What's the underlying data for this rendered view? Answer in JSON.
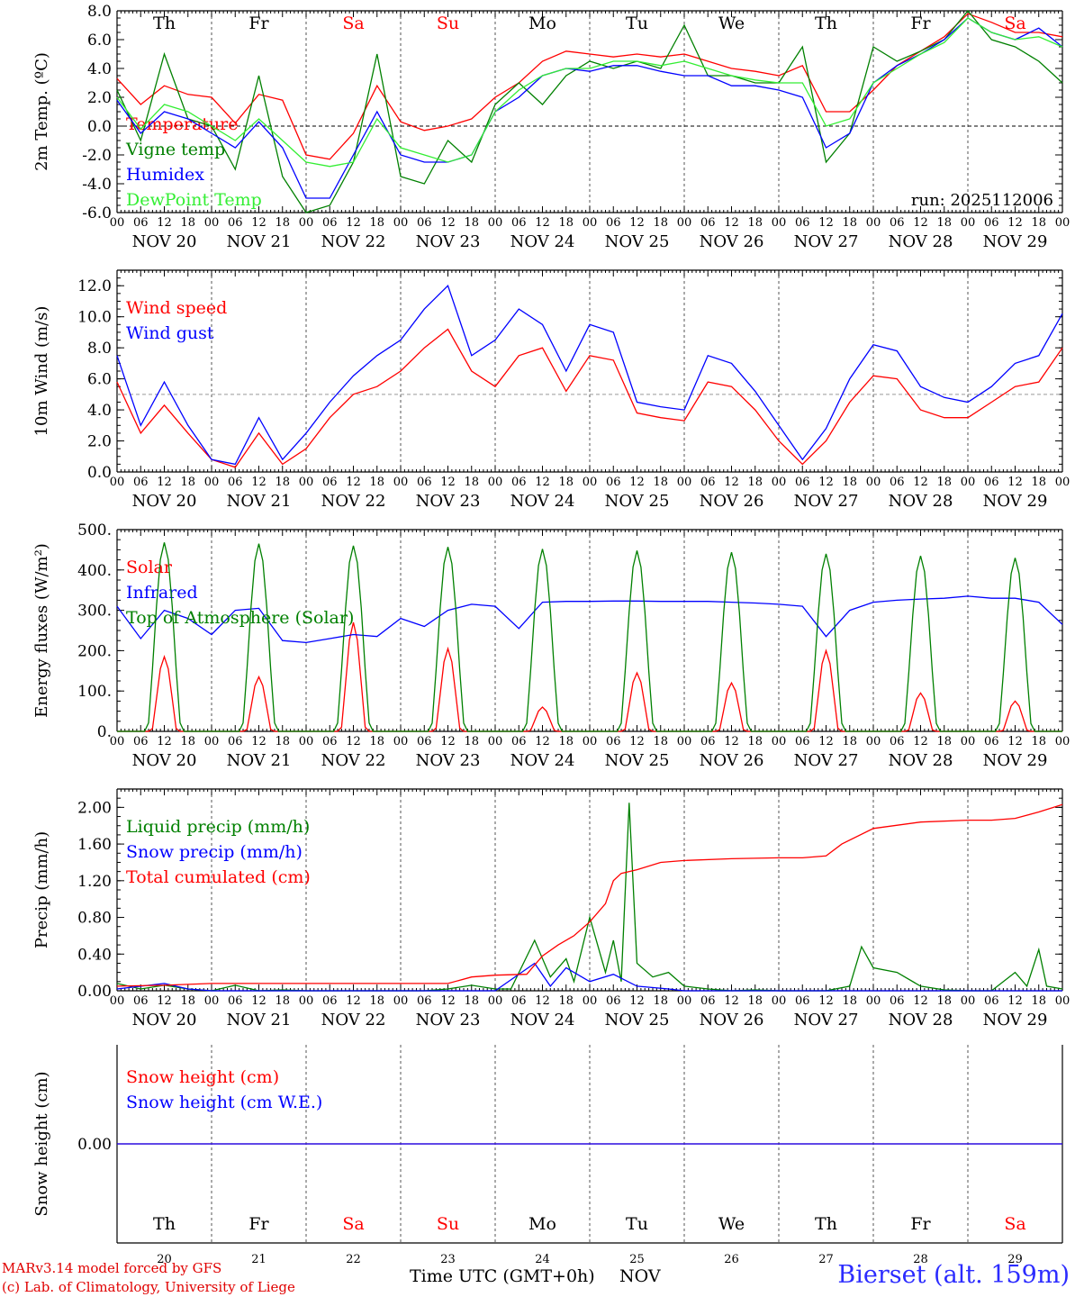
{
  "colors": {
    "red": "#ff0000",
    "green": "#008000",
    "blue": "#0000ff",
    "lightgreen": "#33ee33",
    "axis": "#000000",
    "grid": "#555555",
    "weekend": "#ff0000"
  },
  "days": {
    "abbrev": [
      "Th",
      "Fr",
      "Sa",
      "Su",
      "Mo",
      "Tu",
      "We",
      "Th",
      "Fr",
      "Sa"
    ],
    "weekend_flags": [
      false,
      false,
      true,
      true,
      false,
      false,
      false,
      false,
      false,
      true
    ],
    "dates": [
      "NOV 20",
      "NOV 21",
      "NOV 22",
      "NOV 23",
      "NOV 24",
      "NOV 25",
      "NOV 26",
      "NOV 27",
      "NOV 28",
      "NOV 29"
    ],
    "day_numbers": [
      "20",
      "21",
      "22",
      "23",
      "24",
      "25",
      "26",
      "27",
      "28",
      "29"
    ],
    "hour_ticks": [
      "00",
      "06",
      "12",
      "18"
    ],
    "final_tick": "00"
  },
  "chart_data": [
    {
      "type": "line",
      "id": "temp",
      "ylabel": "2m Temp. (ºC)",
      "ylim": [
        -6,
        8
      ],
      "yticks": [
        "-6.0",
        "-4.0",
        "-2.0",
        "0.0",
        "2.0",
        "4.0",
        "6.0",
        "8.0"
      ],
      "annotation": "run: 2025112006",
      "series": [
        {
          "name": "Temperature",
          "color": "red",
          "x": [
            0,
            6,
            12,
            18,
            24,
            30,
            36,
            42,
            48,
            54,
            60,
            66,
            72,
            78,
            84,
            90,
            96,
            102,
            108,
            114,
            120,
            126,
            132,
            138,
            144,
            150,
            156,
            162,
            168,
            174,
            180,
            186,
            192,
            198,
            204,
            210,
            216,
            222,
            228,
            234,
            240
          ],
          "values": [
            3.3,
            1.5,
            2.8,
            2.2,
            2.0,
            0.2,
            2.2,
            1.8,
            -2.0,
            -2.3,
            -0.5,
            2.8,
            0.3,
            -0.3,
            0.0,
            0.5,
            2.0,
            3.0,
            4.5,
            5.2,
            5.0,
            4.8,
            5.0,
            4.8,
            5.0,
            4.5,
            4.0,
            3.8,
            3.5,
            4.2,
            1.0,
            1.0,
            2.5,
            4.2,
            5.2,
            6.2,
            7.8,
            7.2,
            6.5,
            6.5,
            6.2
          ]
        },
        {
          "name": "Vigne temp",
          "color": "green",
          "x": [
            0,
            6,
            12,
            18,
            24,
            30,
            36,
            42,
            48,
            54,
            60,
            66,
            72,
            78,
            84,
            90,
            96,
            102,
            108,
            114,
            120,
            126,
            132,
            138,
            144,
            150,
            156,
            162,
            168,
            174,
            180,
            186,
            192,
            198,
            204,
            210,
            216,
            222,
            228,
            234,
            240
          ],
          "values": [
            2.5,
            -1.0,
            5.0,
            0.5,
            0.0,
            -3.0,
            3.5,
            -3.5,
            -6.0,
            -5.5,
            -2.5,
            5.0,
            -3.5,
            -4.0,
            -1.0,
            -2.5,
            1.5,
            3.0,
            1.5,
            3.5,
            4.5,
            4.0,
            4.5,
            4.0,
            7.0,
            3.5,
            3.5,
            3.0,
            3.0,
            5.5,
            -2.5,
            -0.5,
            5.5,
            4.5,
            5.2,
            6.0,
            8.0,
            6.0,
            5.5,
            4.5,
            3.0
          ]
        },
        {
          "name": "Humidex",
          "color": "blue",
          "x": [
            0,
            6,
            12,
            18,
            24,
            30,
            36,
            42,
            48,
            54,
            60,
            66,
            72,
            78,
            84,
            90,
            96,
            102,
            108,
            114,
            120,
            126,
            132,
            138,
            144,
            150,
            156,
            162,
            168,
            174,
            180,
            186,
            192,
            198,
            204,
            210,
            216,
            222,
            228,
            234,
            240
          ],
          "values": [
            1.8,
            -0.5,
            1.0,
            0.5,
            -0.5,
            -1.5,
            0.3,
            -1.5,
            -5.0,
            -5.0,
            -2.0,
            1.0,
            -2.0,
            -2.5,
            -2.5,
            -2.0,
            1.0,
            2.0,
            3.5,
            4.0,
            3.8,
            4.2,
            4.2,
            3.8,
            3.5,
            3.5,
            2.8,
            2.8,
            2.5,
            2.0,
            -1.5,
            -0.5,
            3.0,
            4.2,
            5.0,
            6.0,
            7.5,
            6.5,
            6.0,
            6.8,
            5.5
          ]
        },
        {
          "name": "DewPoint Temp",
          "color": "lightgreen",
          "x": [
            0,
            6,
            12,
            18,
            24,
            30,
            36,
            42,
            48,
            54,
            60,
            66,
            72,
            78,
            84,
            90,
            96,
            102,
            108,
            114,
            120,
            126,
            132,
            138,
            144,
            150,
            156,
            162,
            168,
            174,
            180,
            186,
            192,
            198,
            204,
            210,
            216,
            222,
            228,
            234,
            240
          ],
          "values": [
            2.0,
            -0.2,
            1.5,
            1.0,
            0.0,
            -1.0,
            0.5,
            -1.0,
            -2.5,
            -2.8,
            -2.5,
            0.5,
            -1.5,
            -2.0,
            -2.5,
            -2.0,
            1.0,
            2.5,
            3.5,
            4.0,
            4.0,
            4.5,
            4.5,
            4.2,
            4.5,
            4.0,
            3.5,
            3.2,
            3.0,
            3.0,
            0.0,
            0.5,
            3.0,
            4.0,
            5.0,
            5.8,
            7.5,
            6.5,
            6.0,
            6.2,
            5.5
          ]
        }
      ]
    },
    {
      "type": "line",
      "id": "wind",
      "ylabel": "10m Wind (m/s)",
      "ylim": [
        0,
        13
      ],
      "yticks": [
        "0.0",
        "2.0",
        "4.0",
        "6.0",
        "8.0",
        "10.0",
        "12.0"
      ],
      "series": [
        {
          "name": "Wind speed",
          "color": "red",
          "x": [
            0,
            6,
            12,
            18,
            24,
            30,
            36,
            42,
            48,
            54,
            60,
            66,
            72,
            78,
            84,
            90,
            96,
            102,
            108,
            114,
            120,
            126,
            132,
            138,
            144,
            150,
            156,
            162,
            168,
            174,
            180,
            186,
            192,
            198,
            204,
            210,
            216,
            222,
            228,
            234,
            240
          ],
          "values": [
            5.8,
            2.5,
            4.3,
            2.5,
            0.8,
            0.3,
            2.5,
            0.5,
            1.5,
            3.5,
            5.0,
            5.5,
            6.5,
            8.0,
            9.2,
            6.5,
            5.5,
            7.5,
            8.0,
            5.2,
            7.5,
            7.2,
            3.8,
            3.5,
            3.3,
            5.8,
            5.5,
            4.0,
            2.0,
            0.5,
            2.0,
            4.5,
            6.2,
            6.0,
            4.0,
            3.5,
            3.5,
            4.5,
            5.5,
            5.8,
            8.0
          ]
        },
        {
          "name": "Wind gust",
          "color": "blue",
          "x": [
            0,
            6,
            12,
            18,
            24,
            30,
            36,
            42,
            48,
            54,
            60,
            66,
            72,
            78,
            84,
            90,
            96,
            102,
            108,
            114,
            120,
            126,
            132,
            138,
            144,
            150,
            156,
            162,
            168,
            174,
            180,
            186,
            192,
            198,
            204,
            210,
            216,
            222,
            228,
            234,
            240
          ],
          "values": [
            7.5,
            3.0,
            5.8,
            3.0,
            0.8,
            0.5,
            3.5,
            0.8,
            2.5,
            4.5,
            6.2,
            7.5,
            8.5,
            10.5,
            12.0,
            7.5,
            8.5,
            10.5,
            9.5,
            6.5,
            9.5,
            9.0,
            4.5,
            4.2,
            4.0,
            7.5,
            7.0,
            5.2,
            3.0,
            0.8,
            2.8,
            6.0,
            8.2,
            7.8,
            5.5,
            4.8,
            4.5,
            5.5,
            7.0,
            7.5,
            10.2
          ]
        }
      ]
    },
    {
      "type": "line",
      "id": "flux",
      "ylabel": "Energy fluxes (W/m²)",
      "ylim": [
        0,
        500
      ],
      "yticks": [
        "0.",
        "100.",
        "200.",
        "300.",
        "400.",
        "500."
      ],
      "series": [
        {
          "name": "Solar",
          "color": "red",
          "peaks": [
            185,
            135,
            270,
            205,
            60,
            145,
            120,
            200,
            95,
            75
          ]
        },
        {
          "name": "Infrared",
          "color": "blue",
          "x": [
            0,
            6,
            12,
            18,
            24,
            30,
            36,
            42,
            48,
            54,
            60,
            66,
            72,
            78,
            84,
            90,
            96,
            102,
            108,
            114,
            120,
            126,
            132,
            138,
            144,
            150,
            156,
            162,
            168,
            174,
            180,
            186,
            192,
            198,
            204,
            210,
            216,
            222,
            228,
            234,
            240
          ],
          "values": [
            310,
            230,
            300,
            280,
            240,
            300,
            305,
            225,
            220,
            230,
            240,
            235,
            280,
            260,
            300,
            315,
            310,
            255,
            320,
            322,
            322,
            323,
            323,
            322,
            322,
            322,
            320,
            318,
            315,
            310,
            235,
            300,
            320,
            325,
            328,
            330,
            335,
            330,
            330,
            320,
            265
          ]
        },
        {
          "name": "Top of Atmosphere (Solar)",
          "color": "green",
          "peaks": [
            468,
            465,
            460,
            457,
            452,
            448,
            444,
            440,
            435,
            430
          ]
        }
      ]
    },
    {
      "type": "line",
      "id": "precip",
      "ylabel": "Precip (mm/h)",
      "ylim": [
        0,
        2.2
      ],
      "yticks": [
        "0.00",
        "0.40",
        "0.80",
        "1.20",
        "1.60",
        "2.00"
      ],
      "series": [
        {
          "name": "Liquid precip (mm/h)",
          "color": "green",
          "x": [
            0,
            6,
            12,
            18,
            24,
            30,
            36,
            42,
            48,
            54,
            60,
            66,
            72,
            78,
            84,
            90,
            96,
            100,
            106,
            110,
            114,
            116,
            120,
            124,
            126,
            128,
            130,
            132,
            136,
            140,
            144,
            150,
            156,
            162,
            168,
            174,
            180,
            186,
            189,
            192,
            198,
            204,
            210,
            216,
            222,
            228,
            231,
            234,
            236,
            240
          ],
          "values": [
            0.08,
            0.02,
            0.06,
            0.02,
            0.0,
            0.06,
            0.0,
            0.01,
            0.0,
            0.0,
            0.0,
            0.0,
            0.0,
            0.0,
            0.02,
            0.06,
            0.02,
            0.02,
            0.55,
            0.15,
            0.35,
            0.1,
            0.8,
            0.2,
            0.55,
            0.1,
            2.05,
            0.3,
            0.15,
            0.2,
            0.05,
            0.02,
            0.0,
            0.01,
            0.0,
            0.0,
            0.0,
            0.05,
            0.48,
            0.25,
            0.2,
            0.05,
            0.01,
            0.0,
            0.0,
            0.2,
            0.05,
            0.45,
            0.05,
            0.02
          ]
        },
        {
          "name": "Snow precip (mm/h)",
          "color": "blue",
          "x": [
            0,
            12,
            18,
            24,
            48,
            72,
            96,
            106,
            110,
            114,
            120,
            126,
            132,
            140,
            144,
            168,
            192,
            216,
            240
          ],
          "values": [
            0.02,
            0.08,
            0.02,
            0.0,
            0.0,
            0.0,
            0.0,
            0.3,
            0.05,
            0.25,
            0.1,
            0.18,
            0.05,
            0.02,
            0.0,
            0.0,
            0.0,
            0.0,
            0.0
          ]
        },
        {
          "name": "Total cumulated (cm)",
          "color": "red",
          "x": [
            0,
            12,
            24,
            48,
            72,
            84,
            90,
            96,
            104,
            108,
            112,
            116,
            120,
            124,
            126,
            128,
            132,
            138,
            144,
            156,
            168,
            174,
            180,
            184,
            192,
            204,
            216,
            222,
            228,
            234,
            240
          ],
          "values": [
            0.05,
            0.06,
            0.08,
            0.08,
            0.08,
            0.08,
            0.15,
            0.17,
            0.18,
            0.38,
            0.5,
            0.6,
            0.75,
            0.95,
            1.2,
            1.28,
            1.32,
            1.4,
            1.42,
            1.44,
            1.45,
            1.45,
            1.47,
            1.6,
            1.77,
            1.84,
            1.86,
            1.86,
            1.88,
            1.95,
            2.03
          ]
        }
      ]
    },
    {
      "type": "line",
      "id": "snow",
      "ylabel": "Snow height (cm)",
      "ylim": [
        -1,
        1
      ],
      "yticks": [
        "0.00"
      ],
      "series": [
        {
          "name": "Snow height (cm)",
          "color": "red",
          "x": [
            0,
            240
          ],
          "values": [
            0,
            0
          ]
        },
        {
          "name": "Snow height (cm W.E.)",
          "color": "blue",
          "x": [
            0,
            240
          ],
          "values": [
            0,
            0
          ]
        }
      ]
    }
  ],
  "footer": {
    "credit_line1": "MARv3.14 model forced by GFS",
    "credit_line2": "(c) Lab. of Climatology, University of Liege",
    "xlabel": "Time UTC (GMT+0h)",
    "month": "NOV",
    "station": "Bierset (alt. 159m)"
  }
}
